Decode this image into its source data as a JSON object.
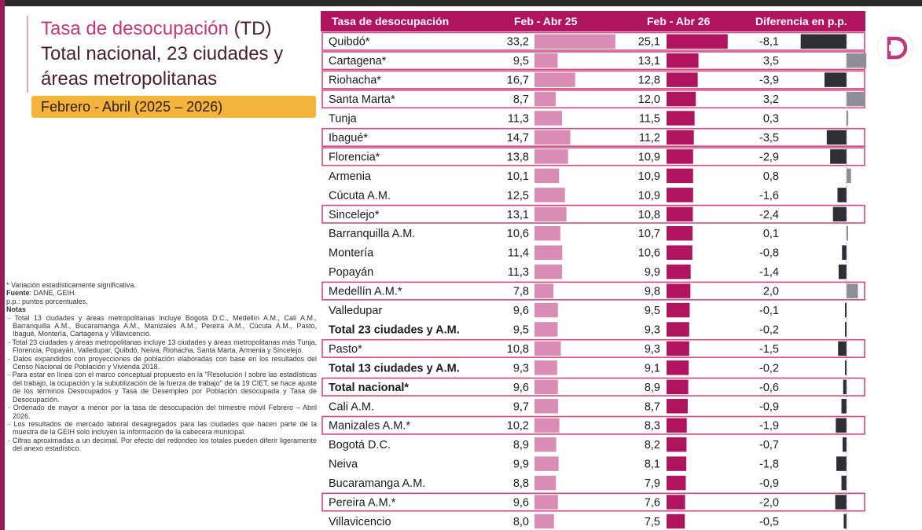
{
  "title": {
    "part1": "Tasa de desocupación",
    "part1_suffix": " (TD)",
    "line2": "Total nacional, 23 ciudades y",
    "line3": "áreas metropolitanas"
  },
  "period": "Febrero - Abril (2025 – 2026)",
  "colors": {
    "header_bg": "#b0145e",
    "bar_2025": "#d98cb4",
    "bar_2026": "#b0145e",
    "bar_neg": "#2e2e36",
    "bar_pos": "#8e8e98",
    "highlight_border": "#d9477f",
    "brand": "#c0387a",
    "period_bg": "#f4b43a"
  },
  "notes": {
    "significance": "* Variación estadísticamente significativa.",
    "source_label": "Fuente",
    "source_value": ": DANE, GEIH.",
    "pp": "p.p.: puntos porcentuales.",
    "notes_label": "Notas",
    "items": [
      "· Total 13 ciudades y áreas metropolitanas incluye Bogotá D.C., Medellín A.M., Cali A.M., Barranquilla A.M., Bucaramanga A.M., Manizales A.M., Pereira A.M., Cúcuta A.M., Pasto, Ibagué, Montería, Cartagena y Villavicencio.",
      "· Total 23 ciudades y áreas metropolitanas incluye 13 ciudades y áreas metropolitanas más Tunja, Florencia, Popayán, Valledupar, Quibdó, Neiva, Riohacha, Santa Marta, Armenia y Sincelejo.",
      "· Datos expandidos con proyecciones de población elaboradas con base en los resultados del Censo Nacional de Población y Vivienda 2018.",
      "· Para estar en línea con el marco conceptual propuesto en la \"Resolución I sobre las estadísticas del trabajo, la ocupación y la subutilización de la fuerza de trabajo\" de la 19 CIET, se hace ajuste de los términos Desocupados y Tasa de Desempleo por Población desocupada y Tasa de Desocupación.",
      "· Ordenado de mayor a menor por la tasa de desocupación del trimestre móvil Febrero – Abril 2026.",
      "· Los resultados de mercado laboral desagregados para las ciudades que hacen parte de la muestra de la GEIH solo incluyen la información de la cabecera municipal.",
      "· Cifras aproximadas a un decimal. Por efecto del redondeo los totales pueden diferir ligeramente del anexo estadístico."
    ]
  },
  "chart_data": {
    "type": "table",
    "columns": [
      "Tasa de desocupación",
      "Feb - Abr 25",
      "Feb - Abr 26",
      "Diferencia en p.p."
    ],
    "rows": [
      {
        "label": "Quibdó*",
        "v2025": "33,2",
        "v2026": "25,1",
        "diff": "-8,1",
        "highlight": true,
        "bold": false
      },
      {
        "label": "Cartagena*",
        "v2025": "9,5",
        "v2026": "13,1",
        "diff": "3,5",
        "highlight": true,
        "bold": false
      },
      {
        "label": "Riohacha*",
        "v2025": "16,7",
        "v2026": "12,8",
        "diff": "-3,9",
        "highlight": true,
        "bold": false
      },
      {
        "label": "Santa Marta*",
        "v2025": "8,7",
        "v2026": "12,0",
        "diff": "3,2",
        "highlight": true,
        "bold": false
      },
      {
        "label": "Tunja",
        "v2025": "11,3",
        "v2026": "11,5",
        "diff": "0,3",
        "highlight": false,
        "bold": false
      },
      {
        "label": "Ibagué*",
        "v2025": "14,7",
        "v2026": "11,2",
        "diff": "-3,5",
        "highlight": true,
        "bold": false
      },
      {
        "label": "Florencia*",
        "v2025": "13,8",
        "v2026": "10,9",
        "diff": "-2,9",
        "highlight": true,
        "bold": false
      },
      {
        "label": "Armenia",
        "v2025": "10,1",
        "v2026": "10,9",
        "diff": "0,8",
        "highlight": false,
        "bold": false
      },
      {
        "label": "Cúcuta A.M.",
        "v2025": "12,5",
        "v2026": "10,9",
        "diff": "-1,6",
        "highlight": false,
        "bold": false
      },
      {
        "label": "Sincelejo*",
        "v2025": "13,1",
        "v2026": "10,8",
        "diff": "-2,4",
        "highlight": true,
        "bold": false
      },
      {
        "label": "Barranquilla A.M.",
        "v2025": "10,6",
        "v2026": "10,7",
        "diff": "0,1",
        "highlight": false,
        "bold": false
      },
      {
        "label": "Montería",
        "v2025": "11,4",
        "v2026": "10,6",
        "diff": "-0,8",
        "highlight": false,
        "bold": false
      },
      {
        "label": "Popayán",
        "v2025": "11,3",
        "v2026": "9,9",
        "diff": "-1,4",
        "highlight": false,
        "bold": false
      },
      {
        "label": "Medellín A.M.*",
        "v2025": "7,8",
        "v2026": "9,8",
        "diff": "2,0",
        "highlight": true,
        "bold": false
      },
      {
        "label": "Valledupar",
        "v2025": "9,6",
        "v2026": "9,5",
        "diff": "-0,1",
        "highlight": false,
        "bold": false
      },
      {
        "label": "Total 23 ciudades y A.M.",
        "v2025": "9,5",
        "v2026": "9,3",
        "diff": "-0,2",
        "highlight": false,
        "bold": true
      },
      {
        "label": "Pasto*",
        "v2025": "10,8",
        "v2026": "9,3",
        "diff": "-1,5",
        "highlight": true,
        "bold": false
      },
      {
        "label": "Total 13 ciudades y A.M.",
        "v2025": "9,3",
        "v2026": "9,1",
        "diff": "-0,2",
        "highlight": false,
        "bold": true
      },
      {
        "label": "Total nacional*",
        "v2025": "9,6",
        "v2026": "8,9",
        "diff": "-0,6",
        "highlight": true,
        "bold": true
      },
      {
        "label": "Cali A.M.",
        "v2025": "9,7",
        "v2026": "8,7",
        "diff": "-0,9",
        "highlight": false,
        "bold": false
      },
      {
        "label": "Manizales A.M.*",
        "v2025": "10,2",
        "v2026": "8,3",
        "diff": "-1,9",
        "highlight": true,
        "bold": false
      },
      {
        "label": "Bogotá D.C.",
        "v2025": "8,9",
        "v2026": "8,2",
        "diff": "-0,7",
        "highlight": false,
        "bold": false
      },
      {
        "label": "Neiva",
        "v2025": "9,9",
        "v2026": "8,1",
        "diff": "-1,8",
        "highlight": false,
        "bold": false
      },
      {
        "label": "Bucaramanga A.M.",
        "v2025": "8,8",
        "v2026": "7,9",
        "diff": "-0,9",
        "highlight": false,
        "bold": false
      },
      {
        "label": "Pereira A.M.*",
        "v2025": "9,6",
        "v2026": "7,6",
        "diff": "-2,0",
        "highlight": true,
        "bold": false
      },
      {
        "label": "Villavicencio",
        "v2025": "8,0",
        "v2026": "7,5",
        "diff": "-0,5",
        "highlight": false,
        "bold": false
      }
    ],
    "grid": false
  }
}
